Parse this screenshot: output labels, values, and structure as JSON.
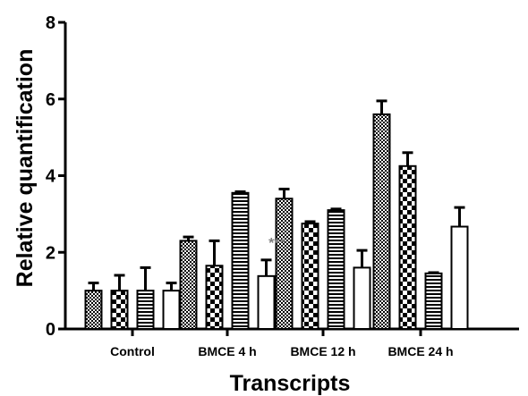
{
  "chart_data": {
    "type": "bar",
    "xlabel": "Transcripts",
    "ylabel": "Relative quantification",
    "ylim": [
      0,
      8
    ],
    "yticks": [
      0,
      2,
      4,
      6,
      8
    ],
    "categories": [
      "Control",
      "BMCE 4 h",
      "BMCE 12 h",
      "BMCE 24 h"
    ],
    "series": [
      {
        "pattern": "crosshatch",
        "values": [
          1.0,
          2.3,
          3.4,
          5.6
        ],
        "errors": [
          0.2,
          0.1,
          0.25,
          0.35
        ]
      },
      {
        "pattern": "checker",
        "values": [
          1.0,
          1.65,
          2.75,
          4.25
        ],
        "errors": [
          0.4,
          0.65,
          0.05,
          0.35
        ]
      },
      {
        "pattern": "horizontal-lines",
        "values": [
          1.0,
          3.55,
          3.1,
          1.45
        ],
        "errors": [
          0.6,
          0.03,
          0.03,
          0.02
        ]
      },
      {
        "pattern": "open",
        "values": [
          1.0,
          1.38,
          1.6,
          2.67
        ],
        "errors": [
          0.2,
          0.42,
          0.45,
          0.5
        ]
      }
    ],
    "annotations": [
      {
        "text": "***",
        "category": "BMCE 4 h",
        "series_index": 3,
        "color": "#808080"
      }
    ],
    "grid": false,
    "legend": "none"
  }
}
